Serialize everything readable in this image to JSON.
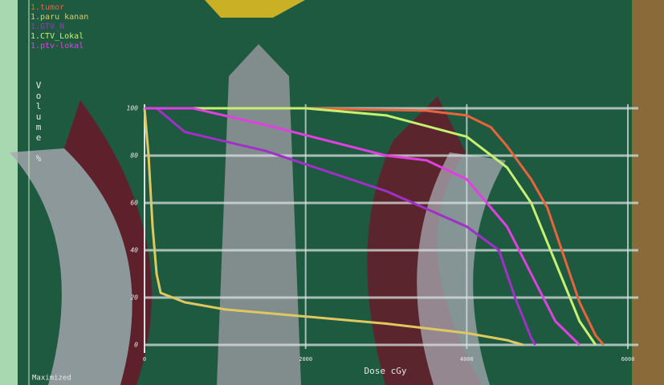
{
  "chart_data": {
    "type": "line",
    "x_label": "Dose cGy",
    "y_label": "Volume %",
    "status": "Maximized",
    "xlim": [
      0,
      6000
    ],
    "xticks": [
      0,
      2000,
      4000,
      6000
    ],
    "ylim": [
      0,
      100
    ],
    "yticks": [
      0,
      20,
      40,
      60,
      80,
      100
    ],
    "grid": true,
    "series": [
      {
        "name": "1.tumor",
        "color": "#e8643c",
        "x": [
          0,
          2000,
          3500,
          4000,
          4300,
          4500,
          4800,
          5000,
          5200,
          5400,
          5600,
          5700
        ],
        "values": [
          100,
          100,
          99,
          97,
          92,
          84,
          70,
          58,
          38,
          18,
          4,
          0
        ]
      },
      {
        "name": "1.paru kanan",
        "color": "#e0c860",
        "x": [
          0,
          50,
          100,
          150,
          200,
          500,
          1000,
          2000,
          3000,
          4000,
          4500,
          4700
        ],
        "values": [
          100,
          80,
          50,
          30,
          22,
          18,
          15,
          12,
          9,
          5,
          2,
          0
        ]
      },
      {
        "name": "1.GTV_N",
        "color": "#a030c8",
        "x": [
          0,
          150,
          500,
          1500,
          3000,
          4000,
          4400,
          4600,
          4800,
          4850
        ],
        "values": [
          100,
          100,
          90,
          82,
          65,
          50,
          40,
          20,
          3,
          0
        ]
      },
      {
        "name": "1.CTV_Lokal",
        "color": "#c8f070",
        "x": [
          0,
          2000,
          3000,
          4000,
          4500,
          4800,
          5100,
          5400,
          5600
        ],
        "values": [
          100,
          100,
          97,
          88,
          75,
          60,
          35,
          10,
          0
        ]
      },
      {
        "name": "1.ptv-lokal",
        "color": "#e040e0",
        "x": [
          0,
          600,
          1500,
          3000,
          3500,
          4000,
          4500,
          4800,
          5100,
          5400
        ],
        "values": [
          100,
          100,
          93,
          80,
          78,
          70,
          50,
          30,
          10,
          0
        ]
      }
    ]
  }
}
